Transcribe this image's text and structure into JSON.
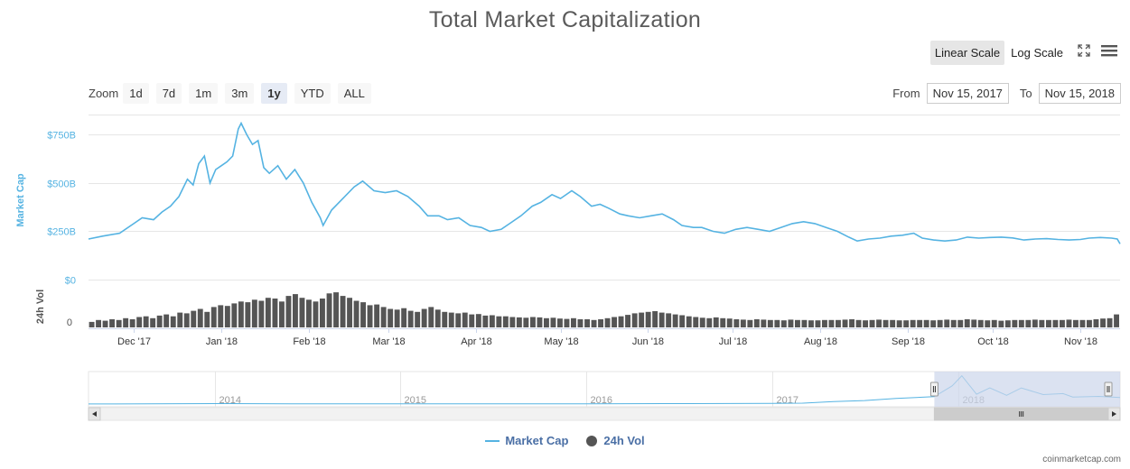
{
  "title": "Total Market Capitalization",
  "scale": {
    "linear_label": "Linear Scale",
    "log_label": "Log Scale",
    "selected": "linear"
  },
  "zoom": {
    "label": "Zoom",
    "buttons": [
      "1d",
      "7d",
      "1m",
      "3m",
      "1y",
      "YTD",
      "ALL"
    ],
    "selected": "1y"
  },
  "range": {
    "from_label": "From",
    "from_value": "Nov 15, 2017",
    "to_label": "To",
    "to_value": "Nov 15, 2018"
  },
  "legend": {
    "market_cap": "Market Cap",
    "volume": "24h Vol"
  },
  "credit": "coinmarketcap.com",
  "colors": {
    "market_cap_line": "#55b3e2",
    "volume_bars": "#555555",
    "navigator_mask": "#ccd6eb"
  },
  "chart_data": {
    "type": "line",
    "ylabel": "Market Cap",
    "y_ticks": [
      "$750B",
      "$500B",
      "$250B",
      "$0"
    ],
    "y_tick_values": [
      750,
      500,
      250,
      0
    ],
    "ylim": [
      0,
      850
    ],
    "x_ticks": [
      "Dec '17",
      "Jan '18",
      "Feb '18",
      "Mar '18",
      "Apr '18",
      "May '18",
      "Jun '18",
      "Jul '18",
      "Aug '18",
      "Sep '18",
      "Oct '18",
      "Nov '18"
    ],
    "x_tick_dates": [
      "2017-12-01",
      "2018-01-01",
      "2018-02-01",
      "2018-03-01",
      "2018-04-01",
      "2018-05-01",
      "2018-06-01",
      "2018-07-01",
      "2018-08-01",
      "2018-09-01",
      "2018-10-01",
      "2018-11-01"
    ],
    "x_range": [
      "2017-11-15",
      "2018-11-15"
    ],
    "series": [
      {
        "name": "Market Cap",
        "unit": "billion USD",
        "points": [
          [
            "2017-11-15",
            210
          ],
          [
            "2017-11-20",
            225
          ],
          [
            "2017-11-26",
            240
          ],
          [
            "2017-12-01",
            290
          ],
          [
            "2017-12-04",
            320
          ],
          [
            "2017-12-08",
            310
          ],
          [
            "2017-12-11",
            350
          ],
          [
            "2017-12-14",
            380
          ],
          [
            "2017-12-17",
            430
          ],
          [
            "2017-12-20",
            520
          ],
          [
            "2017-12-22",
            490
          ],
          [
            "2017-12-24",
            600
          ],
          [
            "2017-12-26",
            640
          ],
          [
            "2017-12-28",
            500
          ],
          [
            "2017-12-30",
            570
          ],
          [
            "2018-01-01",
            590
          ],
          [
            "2018-01-03",
            610
          ],
          [
            "2018-01-05",
            640
          ],
          [
            "2018-01-07",
            780
          ],
          [
            "2018-01-08",
            810
          ],
          [
            "2018-01-10",
            750
          ],
          [
            "2018-01-12",
            700
          ],
          [
            "2018-01-14",
            720
          ],
          [
            "2018-01-16",
            580
          ],
          [
            "2018-01-18",
            550
          ],
          [
            "2018-01-21",
            590
          ],
          [
            "2018-01-24",
            520
          ],
          [
            "2018-01-27",
            570
          ],
          [
            "2018-01-30",
            500
          ],
          [
            "2018-02-02",
            400
          ],
          [
            "2018-02-05",
            320
          ],
          [
            "2018-02-06",
            280
          ],
          [
            "2018-02-09",
            360
          ],
          [
            "2018-02-13",
            420
          ],
          [
            "2018-02-17",
            480
          ],
          [
            "2018-02-20",
            510
          ],
          [
            "2018-02-24",
            460
          ],
          [
            "2018-02-28",
            450
          ],
          [
            "2018-03-04",
            460
          ],
          [
            "2018-03-08",
            430
          ],
          [
            "2018-03-12",
            380
          ],
          [
            "2018-03-15",
            330
          ],
          [
            "2018-03-19",
            330
          ],
          [
            "2018-03-22",
            310
          ],
          [
            "2018-03-26",
            320
          ],
          [
            "2018-03-30",
            280
          ],
          [
            "2018-04-03",
            270
          ],
          [
            "2018-04-06",
            250
          ],
          [
            "2018-04-10",
            260
          ],
          [
            "2018-04-13",
            290
          ],
          [
            "2018-04-17",
            330
          ],
          [
            "2018-04-21",
            380
          ],
          [
            "2018-04-24",
            400
          ],
          [
            "2018-04-28",
            440
          ],
          [
            "2018-05-01",
            420
          ],
          [
            "2018-05-05",
            460
          ],
          [
            "2018-05-08",
            430
          ],
          [
            "2018-05-12",
            380
          ],
          [
            "2018-05-15",
            390
          ],
          [
            "2018-05-18",
            370
          ],
          [
            "2018-05-22",
            340
          ],
          [
            "2018-05-25",
            330
          ],
          [
            "2018-05-29",
            320
          ],
          [
            "2018-06-02",
            330
          ],
          [
            "2018-06-06",
            340
          ],
          [
            "2018-06-10",
            310
          ],
          [
            "2018-06-13",
            280
          ],
          [
            "2018-06-17",
            270
          ],
          [
            "2018-06-20",
            270
          ],
          [
            "2018-06-24",
            250
          ],
          [
            "2018-06-28",
            240
          ],
          [
            "2018-07-02",
            260
          ],
          [
            "2018-07-06",
            270
          ],
          [
            "2018-07-10",
            260
          ],
          [
            "2018-07-14",
            250
          ],
          [
            "2018-07-18",
            270
          ],
          [
            "2018-07-22",
            290
          ],
          [
            "2018-07-26",
            300
          ],
          [
            "2018-07-30",
            290
          ],
          [
            "2018-08-03",
            270
          ],
          [
            "2018-08-07",
            250
          ],
          [
            "2018-08-11",
            220
          ],
          [
            "2018-08-14",
            200
          ],
          [
            "2018-08-18",
            210
          ],
          [
            "2018-08-22",
            215
          ],
          [
            "2018-08-26",
            225
          ],
          [
            "2018-08-30",
            230
          ],
          [
            "2018-09-03",
            240
          ],
          [
            "2018-09-06",
            215
          ],
          [
            "2018-09-10",
            205
          ],
          [
            "2018-09-14",
            200
          ],
          [
            "2018-09-18",
            205
          ],
          [
            "2018-09-22",
            220
          ],
          [
            "2018-09-26",
            215
          ],
          [
            "2018-09-30",
            218
          ],
          [
            "2018-10-04",
            220
          ],
          [
            "2018-10-08",
            216
          ],
          [
            "2018-10-12",
            205
          ],
          [
            "2018-10-16",
            210
          ],
          [
            "2018-10-20",
            212
          ],
          [
            "2018-10-24",
            208
          ],
          [
            "2018-10-28",
            205
          ],
          [
            "2018-11-01",
            208
          ],
          [
            "2018-11-04",
            215
          ],
          [
            "2018-11-08",
            218
          ],
          [
            "2018-11-12",
            215
          ],
          [
            "2018-11-14",
            210
          ],
          [
            "2018-11-15",
            185
          ]
        ]
      },
      {
        "name": "24h Vol",
        "y_ticks": [
          "0"
        ],
        "relative_levels": [
          0.15,
          0.2,
          0.18,
          0.22,
          0.2,
          0.25,
          0.22,
          0.28,
          0.3,
          0.25,
          0.32,
          0.35,
          0.3,
          0.4,
          0.38,
          0.45,
          0.5,
          0.42,
          0.55,
          0.6,
          0.58,
          0.65,
          0.7,
          0.68,
          0.75,
          0.72,
          0.8,
          0.78,
          0.7,
          0.85,
          0.9,
          0.8,
          0.75,
          0.7,
          0.78,
          0.92,
          0.95,
          0.85,
          0.8,
          0.72,
          0.68,
          0.6,
          0.62,
          0.55,
          0.5,
          0.48,
          0.52,
          0.45,
          0.42,
          0.5,
          0.55,
          0.48,
          0.42,
          0.4,
          0.38,
          0.4,
          0.35,
          0.36,
          0.32,
          0.33,
          0.3,
          0.3,
          0.28,
          0.27,
          0.26,
          0.28,
          0.27,
          0.25,
          0.26,
          0.24,
          0.23,
          0.25,
          0.22,
          0.22,
          0.2,
          0.22,
          0.25,
          0.28,
          0.3,
          0.34,
          0.38,
          0.4,
          0.42,
          0.44,
          0.4,
          0.38,
          0.35,
          0.33,
          0.3,
          0.28,
          0.26,
          0.25,
          0.27,
          0.25,
          0.24,
          0.22,
          0.21,
          0.2,
          0.22,
          0.21,
          0.2,
          0.2,
          0.19,
          0.21,
          0.2,
          0.2,
          0.19,
          0.19,
          0.2,
          0.2,
          0.2,
          0.21,
          0.22,
          0.2,
          0.19,
          0.2,
          0.21,
          0.2,
          0.2,
          0.19,
          0.19,
          0.2,
          0.2,
          0.2,
          0.19,
          0.2,
          0.21,
          0.2,
          0.2,
          0.22,
          0.21,
          0.2,
          0.19,
          0.2,
          0.18,
          0.19,
          0.2,
          0.2,
          0.2,
          0.21,
          0.2,
          0.2,
          0.2,
          0.2,
          0.21,
          0.2,
          0.2,
          0.2,
          0.22,
          0.24,
          0.25,
          0.35
        ]
      }
    ],
    "navigator": {
      "x_ticks": [
        "2014",
        "2015",
        "2016",
        "2017",
        "2018"
      ],
      "x_tick_dates": [
        "2014-01-01",
        "2015-01-01",
        "2016-01-01",
        "2017-01-01",
        "2018-01-01"
      ],
      "x_range": [
        "2013-04-28",
        "2018-11-15"
      ],
      "selected_range": [
        "2017-11-15",
        "2018-11-15"
      ],
      "points": [
        [
          "2013-04-28",
          1.5
        ],
        [
          "2014-01-01",
          12
        ],
        [
          "2014-06-01",
          8
        ],
        [
          "2015-01-01",
          5
        ],
        [
          "2015-06-01",
          4
        ],
        [
          "2016-01-01",
          7
        ],
        [
          "2016-06-01",
          12
        ],
        [
          "2017-01-01",
          17
        ],
        [
          "2017-03-01",
          25
        ],
        [
          "2017-05-01",
          70
        ],
        [
          "2017-07-01",
          100
        ],
        [
          "2017-09-01",
          160
        ],
        [
          "2017-11-15",
          210
        ],
        [
          "2017-12-20",
          520
        ],
        [
          "2018-01-08",
          810
        ],
        [
          "2018-02-06",
          280
        ],
        [
          "2018-03-04",
          460
        ],
        [
          "2018-04-06",
          250
        ],
        [
          "2018-05-05",
          460
        ],
        [
          "2018-06-17",
          270
        ],
        [
          "2018-07-26",
          300
        ],
        [
          "2018-08-14",
          200
        ],
        [
          "2018-10-04",
          220
        ],
        [
          "2018-11-15",
          185
        ]
      ]
    }
  }
}
